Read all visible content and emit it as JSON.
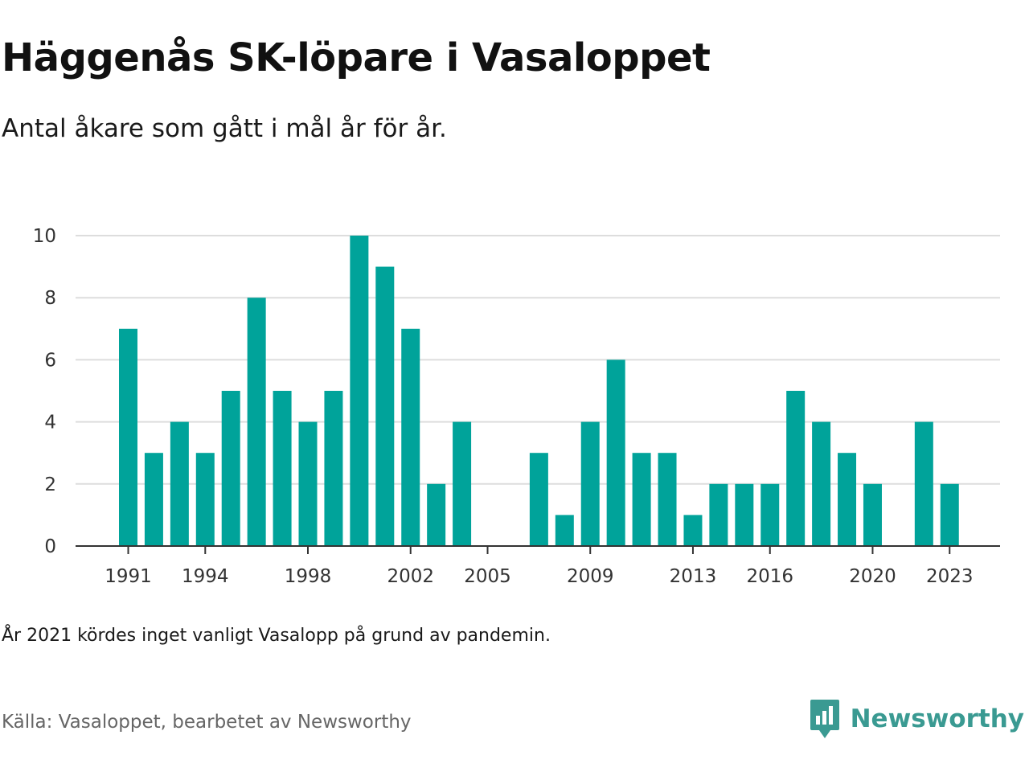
{
  "title": "Häggenås SK-löpare i Vasaloppet",
  "subtitle": "Antal åkare som gått i mål år för år.",
  "note": "År 2021 kördes inget vanligt Vasalopp på grund av pandemin.",
  "source": "Källa: Vasaloppet, bearbetet av Newsworthy",
  "brand": {
    "name": "Newsworthy",
    "icon": "newsworthy-logo-icon",
    "color": "#3a9a92"
  },
  "chart_data": {
    "type": "bar",
    "title": "Häggenås SK-löpare i Vasaloppet",
    "subtitle": "Antal åkare som gått i mål år för år.",
    "xlabel": "",
    "ylabel": "",
    "x": [
      1991,
      1992,
      1993,
      1994,
      1995,
      1996,
      1997,
      1998,
      1999,
      2000,
      2001,
      2002,
      2003,
      2004,
      2005,
      2006,
      2007,
      2008,
      2009,
      2010,
      2011,
      2012,
      2013,
      2014,
      2015,
      2016,
      2017,
      2018,
      2019,
      2020,
      2021,
      2022,
      2023
    ],
    "values": [
      7,
      3,
      4,
      3,
      5,
      8,
      5,
      4,
      5,
      10,
      9,
      7,
      2,
      4,
      0,
      0,
      3,
      1,
      4,
      6,
      3,
      3,
      1,
      2,
      2,
      2,
      5,
      4,
      3,
      2,
      0,
      4,
      2
    ],
    "x_tick_labels": [
      "1991",
      "1994",
      "1998",
      "2002",
      "2005",
      "2009",
      "2013",
      "2016",
      "2020",
      "2023"
    ],
    "y_ticks": [
      "0",
      "2",
      "4",
      "6",
      "8",
      "10"
    ],
    "ylim": [
      0,
      10
    ],
    "xlim": [
      1991,
      2023
    ],
    "grid": "horizontal",
    "bar_color": "#00a39a"
  }
}
